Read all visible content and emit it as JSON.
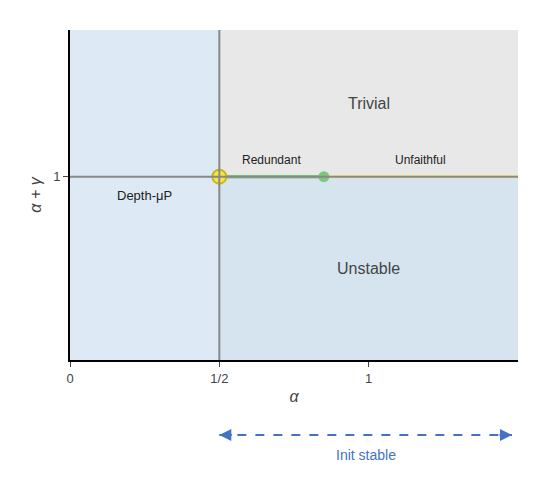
{
  "chart_data": {
    "type": "region",
    "xlabel": "α",
    "ylabel": "α + γ",
    "xlim": [
      0,
      1.5
    ],
    "ylim": [
      0,
      1.8
    ],
    "xticks": [
      0,
      {
        "value": 0.5,
        "label": "1/2"
      },
      1
    ],
    "yticks": [
      1
    ],
    "grid": false,
    "regions": [
      {
        "name": "Depth-μP",
        "color": "#ddeaf5",
        "x": [
          0,
          0.5
        ],
        "y": [
          0,
          1.8
        ]
      },
      {
        "name": "Trivial",
        "color": "#e8e8e8",
        "x": [
          0.5,
          1.5
        ],
        "y": [
          1.0,
          1.8
        ]
      },
      {
        "name": "Unstable",
        "color": "#d6e4f0",
        "x": [
          0.5,
          1.5
        ],
        "y": [
          0,
          1.0
        ]
      }
    ],
    "reference_lines": {
      "x": [
        0.5
      ],
      "y": [
        1.0
      ],
      "color": "#888888"
    },
    "series": [
      {
        "name": "Redundant",
        "type": "line",
        "color": "#7dc87d",
        "x": [
          0.5,
          0.85
        ],
        "values": [
          1.0,
          1.0
        ]
      },
      {
        "name": "Unfaithful",
        "type": "line",
        "color": "#f0e68c",
        "x": [
          0.85,
          1.5
        ],
        "values": [
          1.0,
          1.0
        ]
      },
      {
        "type": "scatter",
        "color": "#f5e642",
        "edge_color": "#c8b820",
        "x": [
          0.5
        ],
        "values": [
          1.0
        ]
      },
      {
        "type": "scatter",
        "color": "#7dc87d",
        "x": [
          0.85
        ],
        "values": [
          1.0
        ]
      }
    ],
    "annotations": [
      {
        "text": "Init stable",
        "color": "#4472c4",
        "x": [
          0.5,
          1.48
        ]
      }
    ]
  }
}
